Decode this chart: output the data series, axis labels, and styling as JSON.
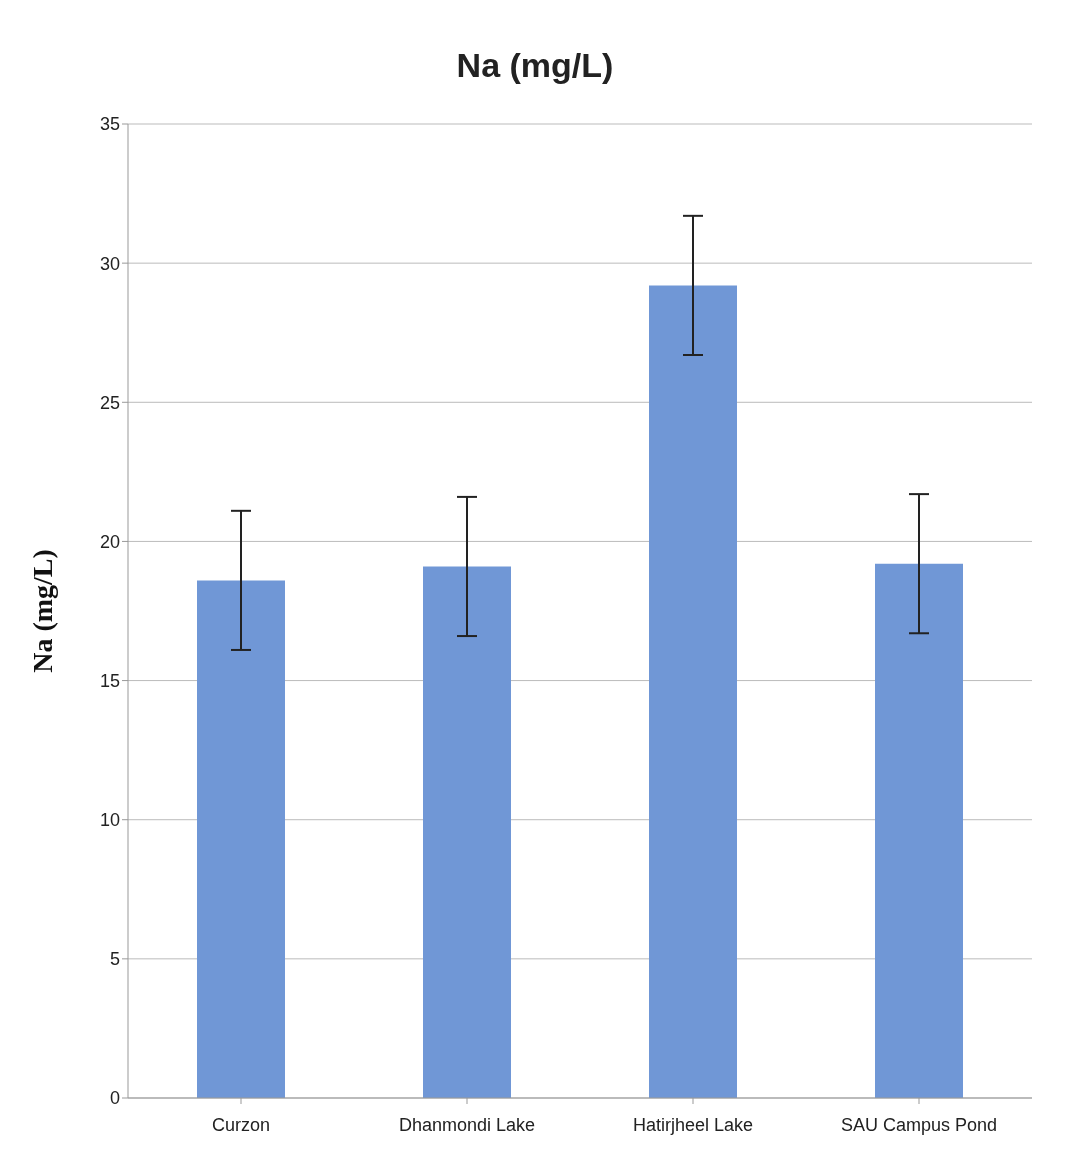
{
  "chart_data": {
    "type": "bar",
    "title": "Na (mg/L)",
    "ylabel": "Na (mg/L)",
    "categories": [
      "Curzon",
      "Dhanmondi Lake",
      "Hatirjheel Lake",
      "SAU Campus Pond"
    ],
    "values": [
      18.6,
      19.1,
      29.2,
      19.2
    ],
    "errors": [
      2.5,
      2.5,
      2.5,
      2.5
    ],
    "color": "#7097d6",
    "ylim": [
      0,
      35
    ],
    "yticks": [
      0,
      5,
      10,
      15,
      20,
      25,
      30,
      35
    ],
    "grid": "y"
  }
}
